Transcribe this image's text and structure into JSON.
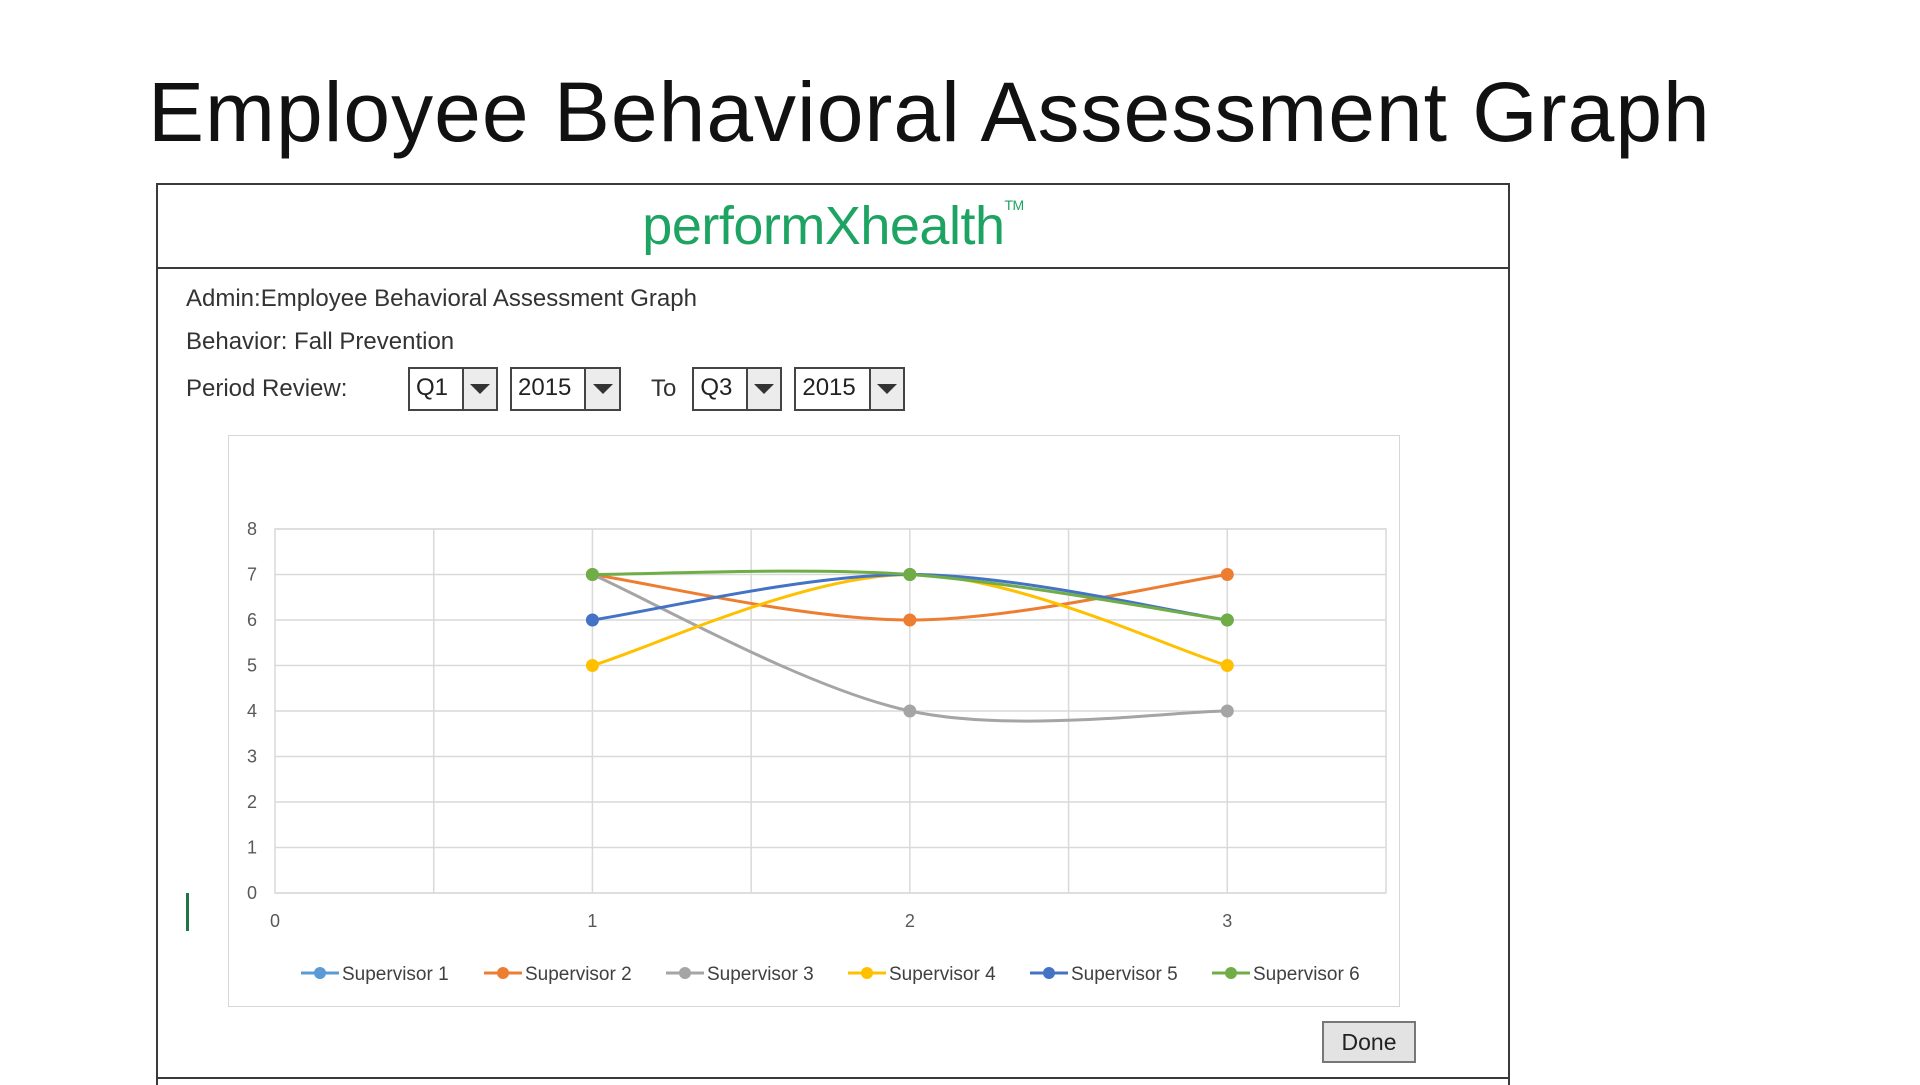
{
  "slide_title": "Employee Behavioral Assessment Graph",
  "dialog": {
    "logo_text": "performXhealth",
    "logo_mark": "TM",
    "logo_color": "#1da462",
    "admin_line": "Admin:Employee Behavioral Assessment Graph",
    "behavior_line": "Behavior: Fall Prevention",
    "period_label": "Period Review:",
    "to_label": "To",
    "from_quarter": "Q1",
    "from_year": "2015",
    "to_quarter": "Q3",
    "to_year": "2015",
    "done_label": "Done"
  },
  "chart_data": {
    "type": "line",
    "smooth": true,
    "title": "",
    "xlabel": "",
    "ylabel": "",
    "xlim": [
      0,
      3.5
    ],
    "ylim": [
      0,
      8
    ],
    "x_ticks": [
      0,
      1,
      2,
      3
    ],
    "y_ticks": [
      0,
      1,
      2,
      3,
      4,
      5,
      6,
      7,
      8
    ],
    "grid": true,
    "legend_position": "bottom",
    "x": [
      1,
      2,
      3
    ],
    "series": [
      {
        "name": "Supervisor 1",
        "color": "#5b9bd5",
        "values": [
          null,
          null,
          null
        ]
      },
      {
        "name": "Supervisor 2",
        "color": "#ed7d31",
        "values": [
          7,
          6,
          7
        ]
      },
      {
        "name": "Supervisor 3",
        "color": "#a5a5a5",
        "values": [
          7,
          4,
          4
        ]
      },
      {
        "name": "Supervisor 4",
        "color": "#ffc000",
        "values": [
          5,
          7,
          5
        ]
      },
      {
        "name": "Supervisor 5",
        "color": "#4472c4",
        "values": [
          6,
          7,
          6
        ]
      },
      {
        "name": "Supervisor 6",
        "color": "#70ad47",
        "values": [
          7,
          7,
          6
        ]
      }
    ]
  }
}
